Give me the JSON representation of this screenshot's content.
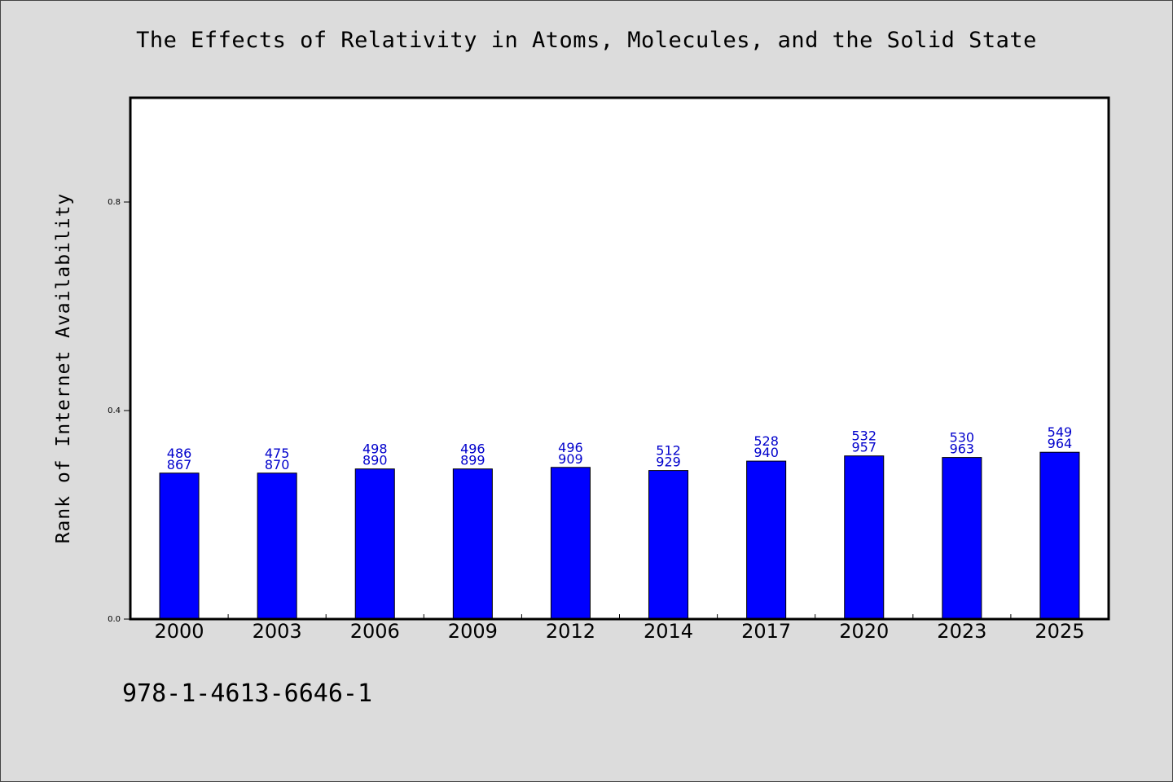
{
  "chart_data": {
    "type": "bar",
    "title": "The Effects of Relativity in Atoms, Molecules, and the Solid State",
    "xlabel": "",
    "ylabel": "Rank of Internet Availability",
    "categories": [
      "2000",
      "2003",
      "2006",
      "2009",
      "2012",
      "2014",
      "2017",
      "2020",
      "2023",
      "2025"
    ],
    "values": [
      0.28,
      0.28,
      0.288,
      0.288,
      0.291,
      0.285,
      0.303,
      0.313,
      0.31,
      0.32
    ],
    "bar_labels_top": [
      "486",
      "475",
      "498",
      "496",
      "496",
      "512",
      "528",
      "532",
      "530",
      "549"
    ],
    "bar_labels_bottom": [
      "867",
      "870",
      "890",
      "899",
      "909",
      "929",
      "940",
      "957",
      "963",
      "964"
    ],
    "ylim": [
      0,
      1.0
    ],
    "yticks": [
      0.0,
      0.4,
      0.8
    ],
    "ytick_labels": [
      "0.0",
      "0.4",
      "0.8"
    ],
    "grid": false,
    "legend": "none",
    "colors": {
      "bar": "#0000ff",
      "bar_label": "#0000cc",
      "background": "#dcdcdc",
      "plot_area": "#ffffff"
    }
  },
  "footer": {
    "code": "978-1-4613-6646-1"
  }
}
